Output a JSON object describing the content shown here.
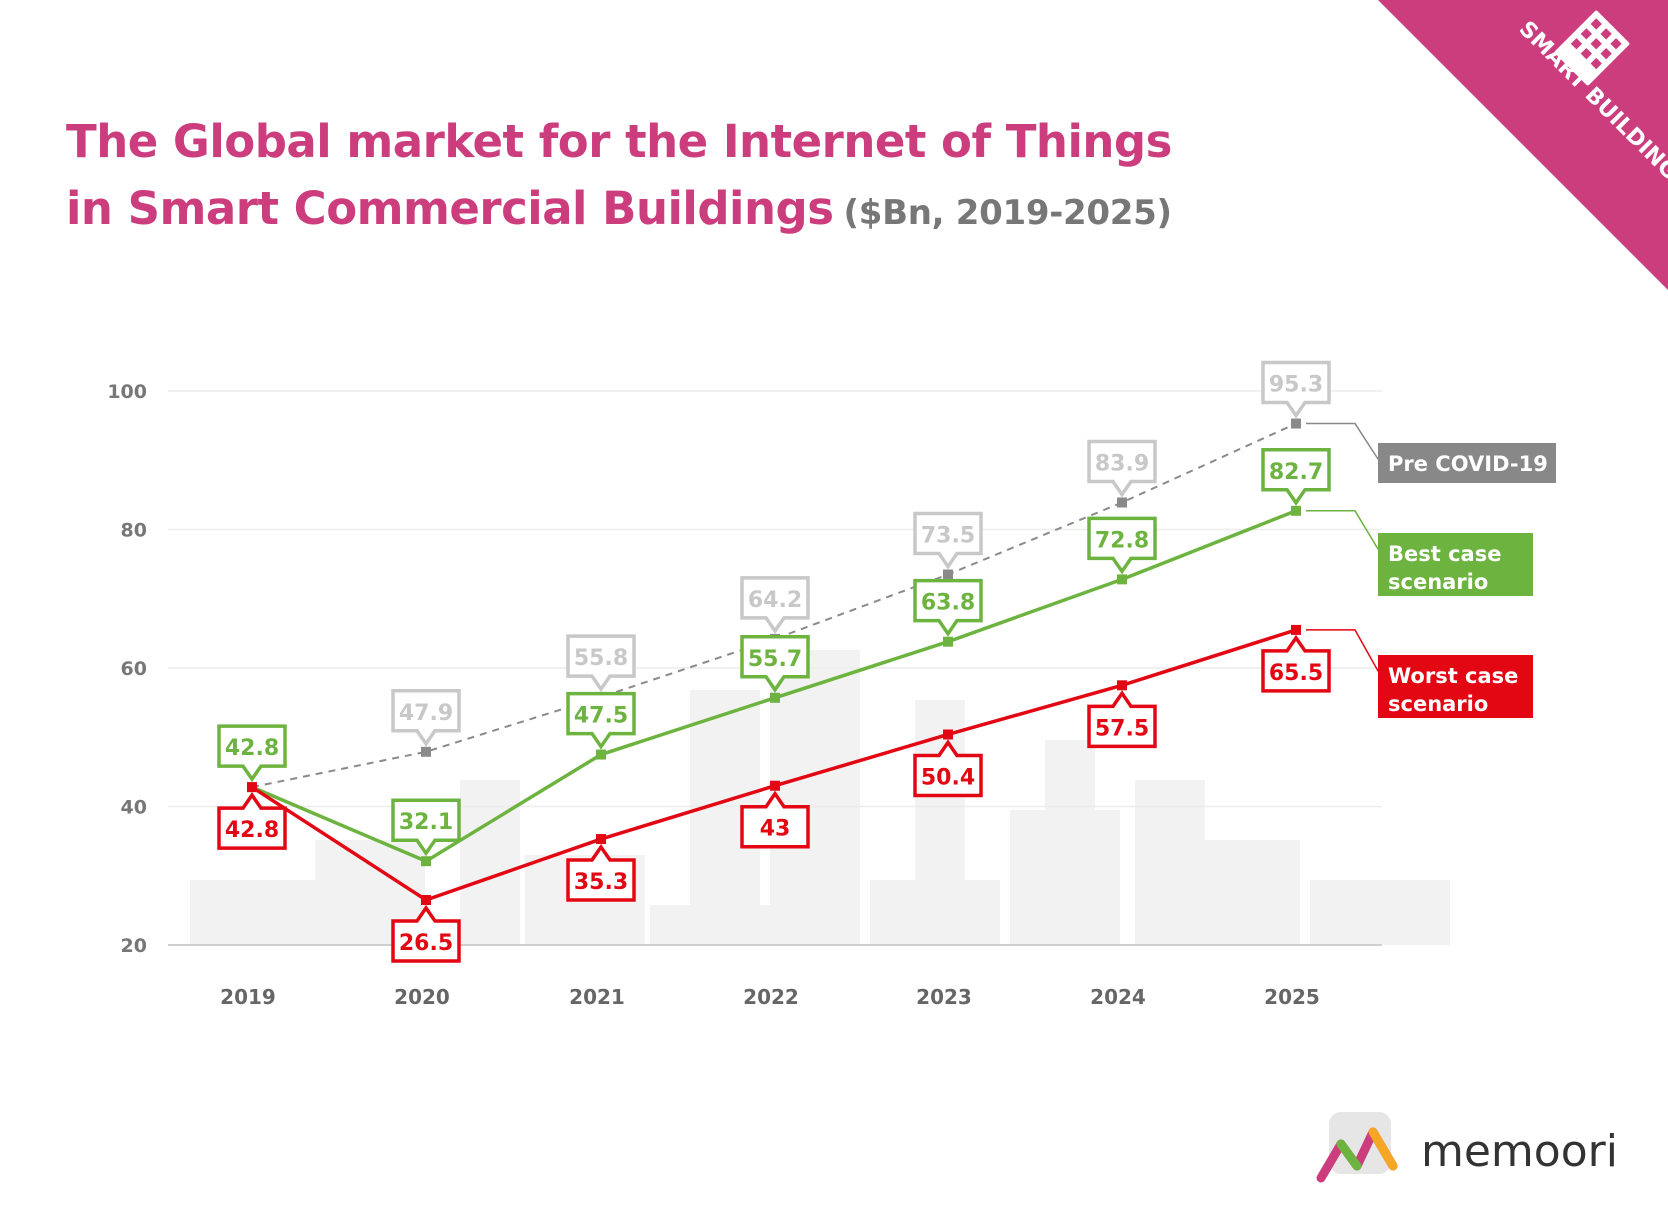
{
  "header": {
    "title_line1": "The Global market for the Internet of Things",
    "title_line2": "in Smart Commercial Buildings",
    "title_units": "($Bn, 2019-2025)"
  },
  "badge": {
    "label": "SMART BUILDINGS",
    "icon": "building-icon",
    "color": "#cc3d7e"
  },
  "logo": {
    "text": "memoori",
    "icon": "memoori-logo-icon"
  },
  "chart_data": {
    "type": "line",
    "title": "The Global market for the Internet of Things in Smart Commercial Buildings ($Bn, 2019-2025)",
    "x": [
      "2019",
      "2020",
      "2021",
      "2022",
      "2023",
      "2024",
      "2025"
    ],
    "ylim": [
      20,
      100
    ],
    "yticks": [
      "20",
      "40",
      "60",
      "80",
      "100"
    ],
    "grid": true,
    "legend_placement": "right",
    "series": [
      {
        "name": "Pre COVID-19",
        "color": "#8a8a8a",
        "line_style": "dashed",
        "values": [
          42.8,
          47.9,
          55.8,
          64.2,
          73.5,
          83.9,
          95.3
        ],
        "labels": [
          "",
          "47.9",
          "55.8",
          "64.2",
          "73.5",
          "83.9",
          "95.3"
        ]
      },
      {
        "name": "Best case scenario",
        "color": "#6db33f",
        "line_style": "solid",
        "values": [
          42.8,
          32.1,
          47.5,
          55.7,
          63.8,
          72.8,
          82.7
        ],
        "labels": [
          "42.8",
          "32.1",
          "47.5",
          "55.7",
          "63.8",
          "72.8",
          "82.7"
        ]
      },
      {
        "name": "Worst case scenario",
        "color": "#e30613",
        "line_style": "solid",
        "values": [
          42.8,
          26.5,
          35.3,
          43,
          50.4,
          57.5,
          65.5
        ],
        "labels": [
          "42.8",
          "26.5",
          "35.3",
          "43",
          "50.4",
          "57.5",
          "65.5"
        ]
      }
    ],
    "legend_labels": {
      "pre": [
        "Pre  COVID-19"
      ],
      "best": [
        "Best case",
        "scenario"
      ],
      "worst": [
        "Worst case",
        "scenario"
      ]
    }
  }
}
